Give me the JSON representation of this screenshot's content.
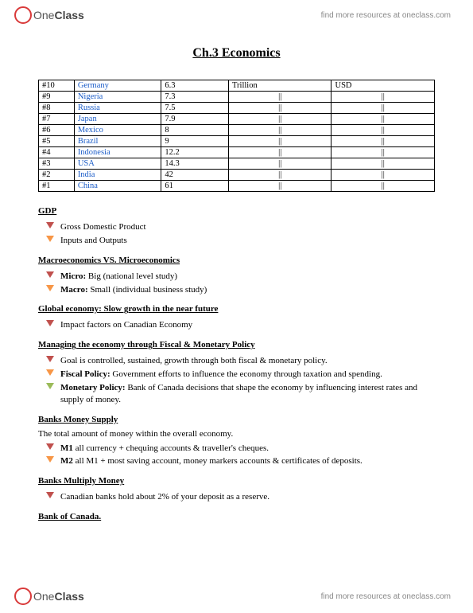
{
  "brand": {
    "one": "One",
    "class": "Class"
  },
  "header_link": "find more resources at oneclass.com",
  "footer_link": "find more resources at oneclass.com",
  "title": "Ch.3 Economics",
  "table": {
    "rows": [
      {
        "rank": "#10",
        "country": "Germany",
        "value": "6.3",
        "unit": "Trillion",
        "curr": "USD"
      },
      {
        "rank": "#9",
        "country": "Nigeria",
        "value": "7.3",
        "unit": "||",
        "curr": "||"
      },
      {
        "rank": "#8",
        "country": "Russia",
        "value": "7.5",
        "unit": "||",
        "curr": "||"
      },
      {
        "rank": "#7",
        "country": "Japan",
        "value": "7.9",
        "unit": "||",
        "curr": "||"
      },
      {
        "rank": "#6",
        "country": "Mexico",
        "value": "8",
        "unit": "||",
        "curr": "||"
      },
      {
        "rank": "#5",
        "country": "Brazil",
        "value": "9",
        "unit": "||",
        "curr": "||"
      },
      {
        "rank": "#4",
        "country": "Indonesia",
        "value": "12.2",
        "unit": "||",
        "curr": "||"
      },
      {
        "rank": "#3",
        "country": "USA",
        "value": "14.3",
        "unit": "||",
        "curr": "||"
      },
      {
        "rank": "#2",
        "country": "India",
        "value": "42",
        "unit": "||",
        "curr": "||"
      },
      {
        "rank": "#1",
        "country": "China",
        "value": "61",
        "unit": "||",
        "curr": "||"
      }
    ],
    "country_link_color": "#1a5cc8"
  },
  "sections": {
    "gdp": {
      "head": "GDP",
      "items": [
        {
          "text": "Gross Domestic Product",
          "color": "c-red"
        },
        {
          "text": "Inputs and Outputs",
          "color": "c-orange"
        }
      ]
    },
    "macro": {
      "head": "Macroeconomics VS. Microeconomics",
      "items": [
        {
          "bold": "Micro:",
          "rest": " Big (national level study)",
          "color": "c-red"
        },
        {
          "bold": "Macro:",
          "rest": " Small (individual business study)",
          "color": "c-orange"
        }
      ]
    },
    "global": {
      "head": "Global economy: Slow growth in the near future",
      "items": [
        {
          "text": "Impact factors on Canadian Economy",
          "color": "c-red"
        }
      ]
    },
    "policy": {
      "head": "Managing the economy through Fiscal & Monetary Policy",
      "items": [
        {
          "text": "Goal is controlled, sustained, growth through both fiscal & monetary policy.",
          "color": "c-red"
        },
        {
          "bold": "Fiscal Policy:",
          "rest": " Government efforts to influence the economy through taxation and spending.",
          "color": "c-orange"
        },
        {
          "bold": "Monetary Policy:",
          "rest": " Bank of Canada decisions that shape the economy by influencing interest rates and supply of money.",
          "color": "c-olive"
        }
      ]
    },
    "supply": {
      "head": "Banks Money Supply",
      "intro": "The total amount of money within the overall economy.",
      "items": [
        {
          "bold": "M1",
          "rest": " all currency + chequing accounts & traveller's cheques.",
          "color": "c-red"
        },
        {
          "bold": "M2",
          "rest": " all M1 + most saving account, money markers accounts & certificates of deposits.",
          "color": "c-orange"
        }
      ]
    },
    "multiply": {
      "head": "Banks Multiply Money",
      "items": [
        {
          "text": "Canadian banks hold about 2% of your deposit as a reserve.",
          "color": "c-red"
        }
      ]
    },
    "boc": {
      "head": "Bank of Canada."
    }
  }
}
